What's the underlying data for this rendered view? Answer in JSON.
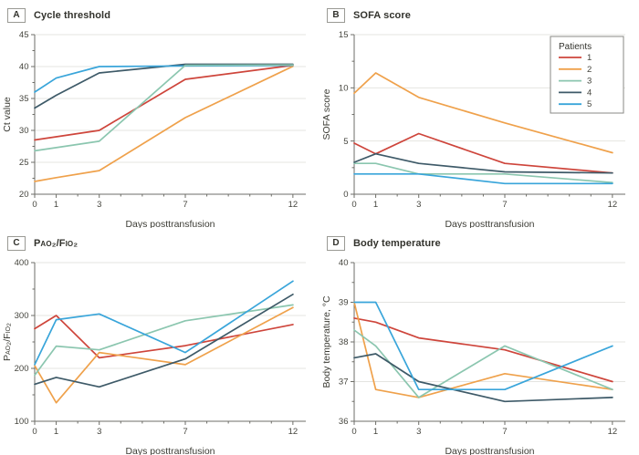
{
  "figure": {
    "background": "#ffffff",
    "grid_color": "#e4e4e1",
    "axis_color": "#6e6e68",
    "text_color": "#45453e",
    "legend_border_color": "#8a8a85"
  },
  "palette": {
    "patient_1_red": "#ce453b",
    "patient_2_orange": "#efa14b",
    "patient_3_teal": "#8bc6af",
    "patient_4_navy": "#3e5a68",
    "patient_5_blue": "#39a5da"
  },
  "chart_data": [
    {
      "type": "line",
      "panel_label": "A",
      "title": "Cycle threshold",
      "xlabel": "Days posttransfusion",
      "ylabel": "Ct value",
      "xlim": [
        0,
        12.6
      ],
      "x_ticks": [
        0,
        1,
        2,
        3,
        4,
        5,
        6,
        7,
        8,
        9,
        10,
        11,
        12
      ],
      "x_labeled_ticks": [
        0,
        1,
        3,
        7,
        12
      ],
      "ylim": [
        20,
        45
      ],
      "yticks": [
        20,
        25,
        30,
        35,
        40,
        45
      ],
      "y_minor": true,
      "grid": true,
      "x": [
        0,
        1,
        3,
        7,
        12
      ],
      "series": [
        {
          "name": "1",
          "color": "#ce453b",
          "values": [
            28.5,
            29.0,
            30.0,
            38.0,
            40.2
          ]
        },
        {
          "name": "2",
          "color": "#efa14b",
          "values": [
            22.0,
            22.6,
            23.7,
            32.0,
            40.05
          ]
        },
        {
          "name": "4",
          "color": "#3e5a68",
          "values": [
            33.5,
            35.5,
            39.0,
            40.35,
            40.35
          ]
        },
        {
          "name": "5",
          "color": "#39a5da",
          "values": [
            36.0,
            38.2,
            40.0,
            40.1,
            40.2
          ]
        },
        {
          "name": "3",
          "color": "#8bc6af",
          "values": [
            26.8,
            27.3,
            28.3,
            40.2,
            40.25
          ]
        }
      ]
    },
    {
      "type": "line",
      "panel_label": "B",
      "title": "SOFA score",
      "xlabel": "Days posttransfusion",
      "ylabel": "SOFA score",
      "xlim": [
        0,
        12.6
      ],
      "x_ticks": [
        0,
        1,
        2,
        3,
        4,
        5,
        6,
        7,
        8,
        9,
        10,
        11,
        12
      ],
      "x_labeled_ticks": [
        0,
        1,
        3,
        7,
        12
      ],
      "ylim": [
        0,
        15
      ],
      "yticks": [
        0,
        5,
        10,
        15
      ],
      "y_minor": true,
      "grid": true,
      "legend_title": "Patients",
      "legend_order": [
        "1",
        "2",
        "3",
        "4",
        "5"
      ],
      "x": [
        0,
        1,
        3,
        7,
        12
      ],
      "series": [
        {
          "name": "1",
          "color": "#ce453b",
          "values": [
            4.8,
            3.8,
            5.7,
            2.9,
            2.0
          ]
        },
        {
          "name": "2",
          "color": "#efa14b",
          "values": [
            9.5,
            11.4,
            9.1,
            6.7,
            3.9
          ]
        },
        {
          "name": "3",
          "color": "#8bc6af",
          "values": [
            2.9,
            2.9,
            1.9,
            1.9,
            1.1
          ]
        },
        {
          "name": "4",
          "color": "#3e5a68",
          "values": [
            3.0,
            3.8,
            2.9,
            2.1,
            2.0
          ]
        },
        {
          "name": "5",
          "color": "#39a5da",
          "values": [
            1.9,
            1.9,
            1.9,
            1.0,
            1.0
          ]
        }
      ]
    },
    {
      "type": "line",
      "panel_label": "C",
      "title": "Pao₂/Fio₂",
      "title_smallcaps": true,
      "xlabel": "Days posttransfusion",
      "ylabel": "Pao₂/Fio₂",
      "ylabel_smallcaps": true,
      "xlim": [
        0,
        12.6
      ],
      "x_ticks": [
        0,
        1,
        2,
        3,
        4,
        5,
        6,
        7,
        8,
        9,
        10,
        11,
        12
      ],
      "x_labeled_ticks": [
        0,
        1,
        3,
        7,
        12
      ],
      "ylim": [
        100,
        400
      ],
      "yticks": [
        100,
        200,
        300,
        400
      ],
      "y_minor": true,
      "grid": true,
      "x": [
        0,
        1,
        3,
        7,
        12
      ],
      "series": [
        {
          "name": "1",
          "color": "#ce453b",
          "values": [
            275,
            300,
            220,
            243,
            283
          ]
        },
        {
          "name": "2",
          "color": "#efa14b",
          "values": [
            205,
            135,
            230,
            207,
            315
          ]
        },
        {
          "name": "3",
          "color": "#8bc6af",
          "values": [
            187,
            242,
            235,
            290,
            320
          ]
        },
        {
          "name": "4",
          "color": "#3e5a68",
          "values": [
            170,
            183,
            165,
            218,
            340
          ]
        },
        {
          "name": "5",
          "color": "#39a5da",
          "values": [
            207,
            292,
            303,
            230,
            365
          ]
        }
      ]
    },
    {
      "type": "line",
      "panel_label": "D",
      "title": "Body temperature",
      "xlabel": "Days posttransfusion",
      "ylabel": "Body temperature, °C",
      "xlim": [
        0,
        12.6
      ],
      "x_ticks": [
        0,
        1,
        2,
        3,
        4,
        5,
        6,
        7,
        8,
        9,
        10,
        11,
        12
      ],
      "x_labeled_ticks": [
        0,
        1,
        3,
        7,
        12
      ],
      "ylim": [
        36,
        40
      ],
      "yticks": [
        36,
        37,
        38,
        39,
        40
      ],
      "y_minor": true,
      "grid": true,
      "x": [
        0,
        1,
        3,
        7,
        12
      ],
      "series": [
        {
          "name": "1",
          "color": "#ce453b",
          "values": [
            38.6,
            38.5,
            38.1,
            37.8,
            37.0
          ]
        },
        {
          "name": "2",
          "color": "#efa14b",
          "values": [
            39.0,
            36.8,
            36.6,
            37.2,
            36.8
          ]
        },
        {
          "name": "3",
          "color": "#8bc6af",
          "values": [
            38.3,
            37.9,
            36.6,
            37.9,
            36.8
          ]
        },
        {
          "name": "4",
          "color": "#3e5a68",
          "values": [
            37.6,
            37.7,
            37.0,
            36.5,
            36.6
          ]
        },
        {
          "name": "5",
          "color": "#39a5da",
          "values": [
            39.0,
            39.0,
            36.8,
            36.8,
            37.9
          ]
        }
      ]
    }
  ]
}
